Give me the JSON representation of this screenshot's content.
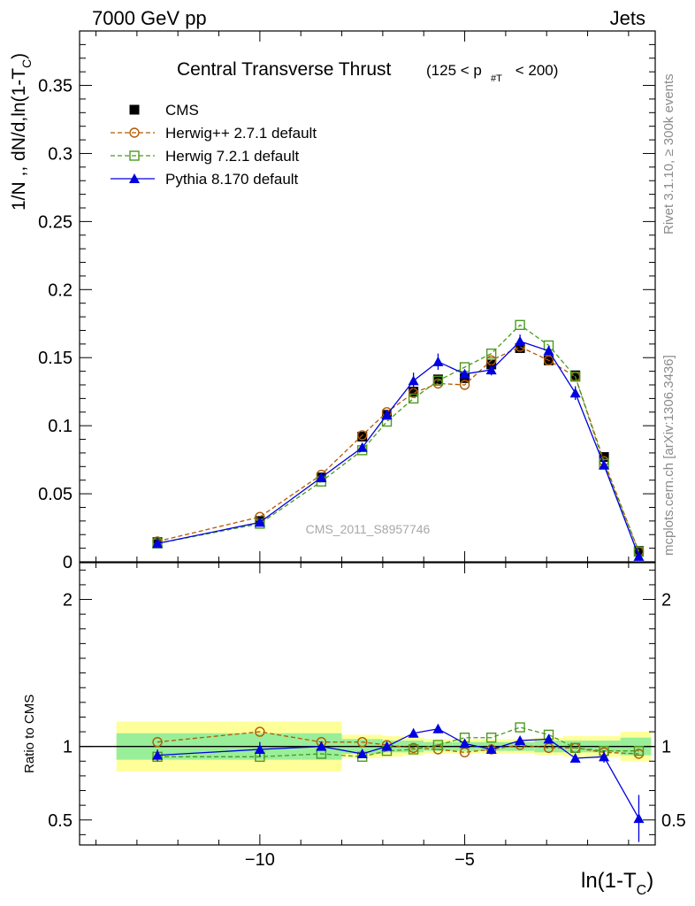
{
  "header": {
    "left": "7000 GeV pp",
    "right": "Jets",
    "side_top": "Rivet 3.1.10, ≥ 300k events",
    "side_bottom": "mcplots.cern.ch [arXiv:1306.3436]"
  },
  "chart_data": {
    "type": "line",
    "title": "Central Transverse Thrust",
    "title_cut": "(125 < p",
    "title_cut_sub": "#T",
    "title_cut_tail": " < 200)",
    "watermark": "CMS_2011_S8957746",
    "xlabel_main": "ln(1-T",
    "xlabel_sub": "C",
    "xlabel_tail": ")",
    "ylabel": "1/N ,, dN/d,ln(1-T",
    "ylabel_sub": "C",
    "ylabel_tail": ")",
    "ratio_ylabel": "Ratio to CMS",
    "xlim": [
      -14.4,
      -0.35
    ],
    "ylim": [
      0,
      0.39
    ],
    "ratio_ylim": [
      0.33,
      2.25
    ],
    "xticks": [
      -10,
      -5
    ],
    "xtick_labels": [
      "−10",
      "−5"
    ],
    "yticks": [
      0,
      0.05,
      0.1,
      0.15,
      0.2,
      0.25,
      0.3,
      0.35
    ],
    "ytick_labels": [
      "0",
      "0.05",
      "0.1",
      "0.15",
      "0.2",
      "0.25",
      "0.3",
      "0.35"
    ],
    "ratio_yticks": [
      0.5,
      1,
      2
    ],
    "ratio_ytick_labels": [
      "0.5",
      "1",
      "2"
    ],
    "legend_position": "top-left",
    "x": [
      -12.5,
      -10.0,
      -8.5,
      -7.5,
      -6.9,
      -6.25,
      -5.65,
      -5.0,
      -4.35,
      -3.65,
      -2.95,
      -2.3,
      -1.6,
      -0.75
    ],
    "band_edges": [
      -13.5,
      -9.0,
      -8.0,
      -7.0,
      -6.5,
      -6.0,
      -5.3,
      -4.7,
      -4.0,
      -3.3,
      -2.6,
      -2.0,
      -1.2,
      -0.45
    ],
    "band_yellow": [
      0.17,
      0.17,
      0.08,
      0.07,
      0.06,
      0.05,
      0.05,
      0.05,
      0.05,
      0.06,
      0.07,
      0.07,
      0.1,
      0.12
    ],
    "band_green": [
      0.09,
      0.09,
      0.05,
      0.04,
      0.04,
      0.03,
      0.03,
      0.03,
      0.03,
      0.04,
      0.04,
      0.04,
      0.06,
      0.07
    ],
    "series": [
      {
        "name": "CMS",
        "style": "data",
        "color": "#000000",
        "values": [
          0.0145,
          0.03,
          0.062,
          0.092,
          0.108,
          0.125,
          0.134,
          0.135,
          0.145,
          0.157,
          0.148,
          0.137,
          0.077,
          0.008
        ]
      },
      {
        "name": "Herwig++ 2.7.1 default",
        "style": "dashed-circle",
        "color": "#b35a00",
        "values": [
          0.015,
          0.033,
          0.064,
          0.093,
          0.11,
          0.124,
          0.131,
          0.13,
          0.148,
          0.158,
          0.148,
          0.136,
          0.074,
          0.0075
        ],
        "ratio": [
          1.03,
          1.1,
          1.03,
          1.03,
          1.01,
          0.99,
          0.98,
          0.96,
          0.98,
          1.01,
          0.99,
          0.99,
          0.96,
          0.95
        ]
      },
      {
        "name": "Herwig 7.2.1 default",
        "style": "dashed-square",
        "color": "#4b9a1e",
        "values": [
          0.0135,
          0.028,
          0.059,
          0.082,
          0.103,
          0.12,
          0.133,
          0.143,
          0.153,
          0.174,
          0.159,
          0.136,
          0.072,
          0.0075
        ],
        "ratio": [
          0.93,
          0.93,
          0.95,
          0.93,
          0.97,
          0.98,
          1.01,
          1.06,
          1.06,
          1.13,
          1.08,
          0.99,
          0.97,
          0.97
        ]
      },
      {
        "name": "Pythia 8.170 default",
        "style": "solid-triangle",
        "color": "#0000e0",
        "values": [
          0.0135,
          0.029,
          0.062,
          0.084,
          0.108,
          0.133,
          0.147,
          0.138,
          0.141,
          0.162,
          0.155,
          0.124,
          0.071,
          0.004
        ],
        "errors": [
          0.0,
          0.0,
          0.0,
          0.0,
          0.0,
          0.006,
          0.006,
          0.0,
          0.004,
          0.005,
          0.0,
          0.005,
          0.0,
          0.0
        ],
        "ratio": [
          0.94,
          0.98,
          1.0,
          0.95,
          1.0,
          1.09,
          1.12,
          1.02,
          0.98,
          1.04,
          1.05,
          0.92,
          0.93,
          0.51
        ],
        "ratio_errors": [
          0.04,
          0.05,
          0.0,
          0.0,
          0.0,
          0.03,
          0.03,
          0.0,
          0.0,
          0.0,
          0.0,
          0.0,
          0.04,
          0.16
        ]
      }
    ]
  }
}
